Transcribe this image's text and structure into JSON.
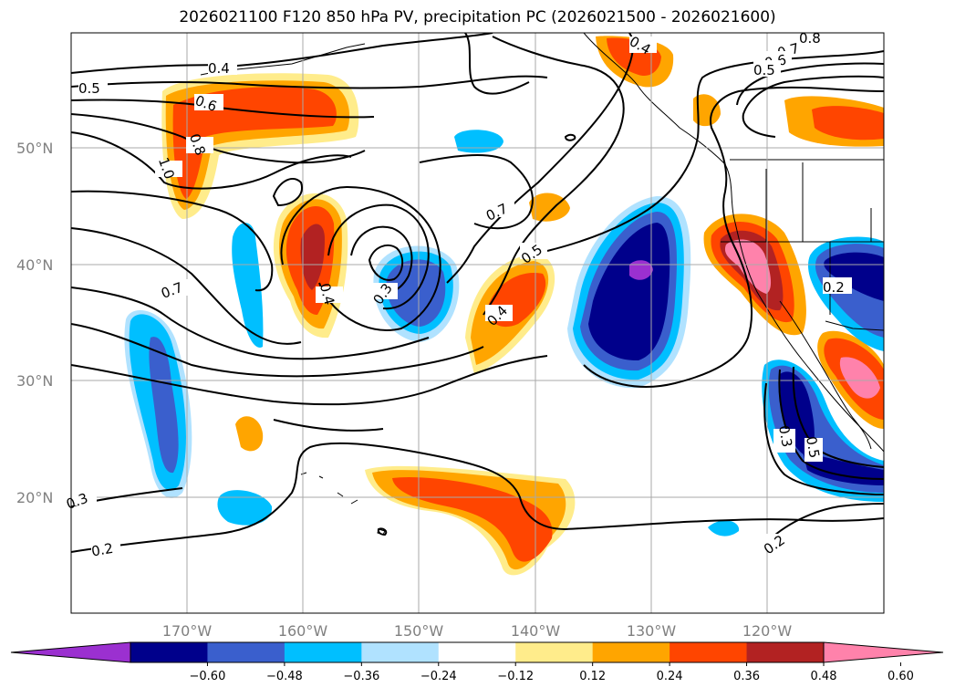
{
  "title": "2026021100 F120 850 hPa PV, precipitation PC (2026021500 - 2026021600)",
  "lat_labels": [
    "50°N",
    "40°N",
    "30°N",
    "20°N"
  ],
  "lon_labels": [
    "170°W",
    "160°W",
    "150°W",
    "140°W",
    "130°W",
    "120°W"
  ],
  "colorbar": {
    "tick_labels": [
      "−0.60",
      "−0.48",
      "−0.36",
      "−0.24",
      "−0.12",
      "0.12",
      "0.24",
      "0.36",
      "0.48",
      "0.60"
    ],
    "colors": [
      "#9b30d0",
      "#00008b",
      "#3a5fcd",
      "#00bfff",
      "#b0e2ff",
      "#ffffff",
      "#ffec8b",
      "#ffa500",
      "#ff4500",
      "#b22222",
      "#ff82ab"
    ]
  },
  "contour_labels": [
    "0.4",
    "0.5",
    "0.6",
    "0.8",
    "1.0",
    "0.7",
    "0.4",
    "0.3",
    "0.7",
    "0.5",
    "0.4",
    "0.4",
    "0.7",
    "0.6",
    "0.5",
    "0.8",
    "0.2",
    "0.3",
    "0.5",
    "0.3",
    "0.2",
    "0.2"
  ]
}
